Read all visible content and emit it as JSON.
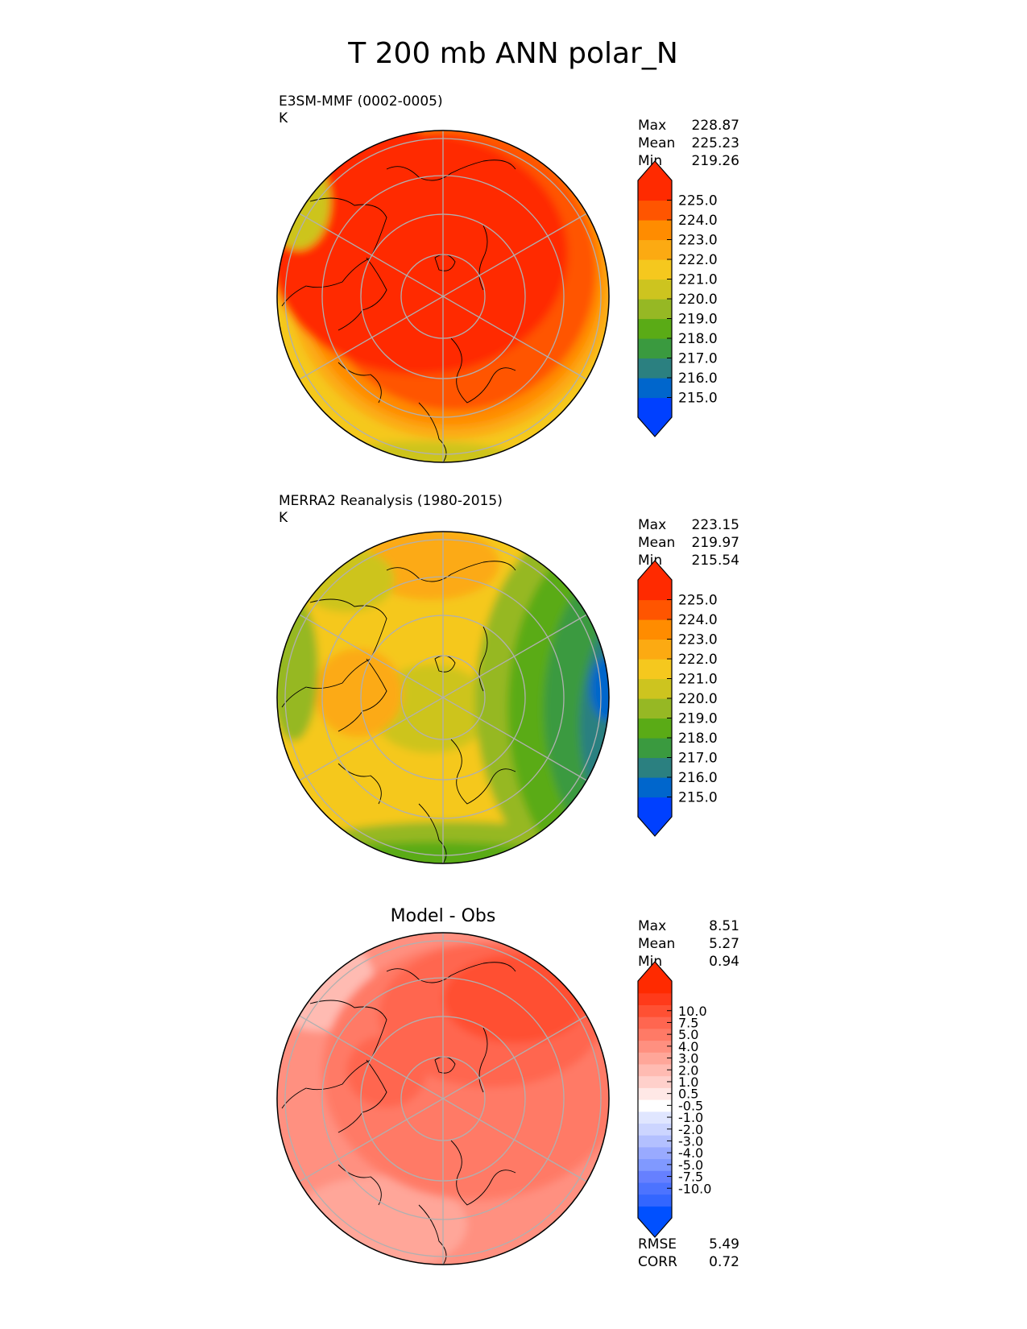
{
  "title": "T 200 mb ANN polar_N",
  "colors": {
    "absolute": [
      "#0040ff",
      "#0066cc",
      "#2b8080",
      "#3a9a3f",
      "#5aab16",
      "#96b824",
      "#cdc41f",
      "#f5c81e",
      "#fcaa12",
      "#ff8c00",
      "#ff5500",
      "#ff2a00"
    ],
    "diff": [
      "#0050ff",
      "#3366ff",
      "#4c73ff",
      "#6680ff",
      "#8099ff",
      "#99aaff",
      "#b3c0ff",
      "#ccd5ff",
      "#e0e6ff",
      "#ffffff",
      "#ffe8e6",
      "#ffd0cb",
      "#ffbbb2",
      "#ffa699",
      "#ff9080",
      "#ff7a66",
      "#ff6650",
      "#ff5033",
      "#ff3a1a",
      "#ff2a00"
    ],
    "grid": "#b0b0b0",
    "coast": "#000000"
  },
  "chart_data": [
    {
      "type": "heatmap",
      "panel": "test",
      "title_line1": "E3SM-MMF (0002-0005)",
      "units": "K",
      "projection": "north polar stereographic",
      "stats": [
        {
          "label": "Max",
          "value": "228.87"
        },
        {
          "label": "Mean",
          "value": "225.23"
        },
        {
          "label": "Min",
          "value": "219.26"
        }
      ],
      "colorbar_levels": [
        "215.0",
        "216.0",
        "217.0",
        "218.0",
        "219.0",
        "220.0",
        "221.0",
        "222.0",
        "223.0",
        "224.0",
        "225.0"
      ],
      "pattern": "warm core (~225-228 K) over Arctic and Eurasia, cooler ring (~219-222 K) toward 50N on Atlantic/Pacific margins"
    },
    {
      "type": "heatmap",
      "panel": "reference",
      "title_line1": "MERRA2 Reanalysis (1980-2015)",
      "units": "K",
      "projection": "north polar stereographic",
      "stats": [
        {
          "label": "Max",
          "value": "223.15"
        },
        {
          "label": "Mean",
          "value": "219.97"
        },
        {
          "label": "Min",
          "value": "215.54"
        }
      ],
      "colorbar_levels": [
        "215.0",
        "216.0",
        "217.0",
        "218.0",
        "219.0",
        "220.0",
        "221.0",
        "222.0",
        "223.0",
        "224.0",
        "225.0"
      ],
      "pattern": "warmer (~222-223 K) over Canada/Atlantic side, cold (~215-218 K) over eastern Asia/North Pacific side"
    },
    {
      "type": "heatmap",
      "panel": "difference",
      "title_center": "Model - Obs",
      "stats": [
        {
          "label": "Max",
          "value": "8.51"
        },
        {
          "label": "Mean",
          "value": "5.27"
        },
        {
          "label": "Min",
          "value": "0.94"
        }
      ],
      "colorbar_levels": [
        "-10.0",
        "-7.5",
        "-5.0",
        "-4.0",
        "-3.0",
        "-2.0",
        "-1.0",
        "-0.5",
        "0.5",
        "1.0",
        "2.0",
        "3.0",
        "4.0",
        "5.0",
        "7.5",
        "10.0"
      ],
      "metrics": [
        {
          "label": "RMSE",
          "value": "5.49"
        },
        {
          "label": "CORR",
          "value": "0.72"
        }
      ],
      "pattern": "positive bias everywhere (~1-8.5 K), largest over Asia/North Pacific sector"
    }
  ]
}
